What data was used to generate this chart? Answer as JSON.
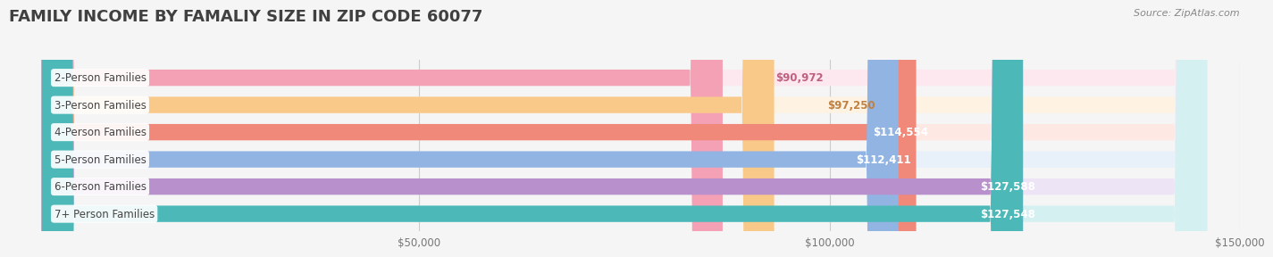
{
  "title": "FAMILY INCOME BY FAMALIY SIZE IN ZIP CODE 60077",
  "source": "Source: ZipAtlas.com",
  "categories": [
    "2-Person Families",
    "3-Person Families",
    "4-Person Families",
    "5-Person Families",
    "6-Person Families",
    "7+ Person Families"
  ],
  "values": [
    90972,
    97250,
    114554,
    112411,
    127588,
    127548
  ],
  "labels": [
    "$90,972",
    "$97,250",
    "$114,554",
    "$112,411",
    "$127,588",
    "$127,548"
  ],
  "bar_colors": [
    "#f4a0b5",
    "#f9c98a",
    "#f0897a",
    "#92b4e3",
    "#b890cc",
    "#4db8b8"
  ],
  "label_colors": [
    "#c06080",
    "#c08040",
    "#d05040",
    "#4060a0",
    "#7050a0",
    "#2090a0"
  ],
  "bg_colors": [
    "#fce8ee",
    "#fef3e2",
    "#fde8e4",
    "#e8f0fa",
    "#ede4f5",
    "#d5f0f0"
  ],
  "xlim": [
    0,
    150000
  ],
  "xticks": [
    0,
    50000,
    100000,
    150000
  ],
  "xticklabels": [
    "",
    "$50,000",
    "$100,000",
    "$150,000"
  ],
  "background_color": "#f5f5f5",
  "bar_height": 0.62,
  "title_fontsize": 13,
  "label_fontsize": 8.5,
  "tick_fontsize": 8.5,
  "source_fontsize": 8
}
